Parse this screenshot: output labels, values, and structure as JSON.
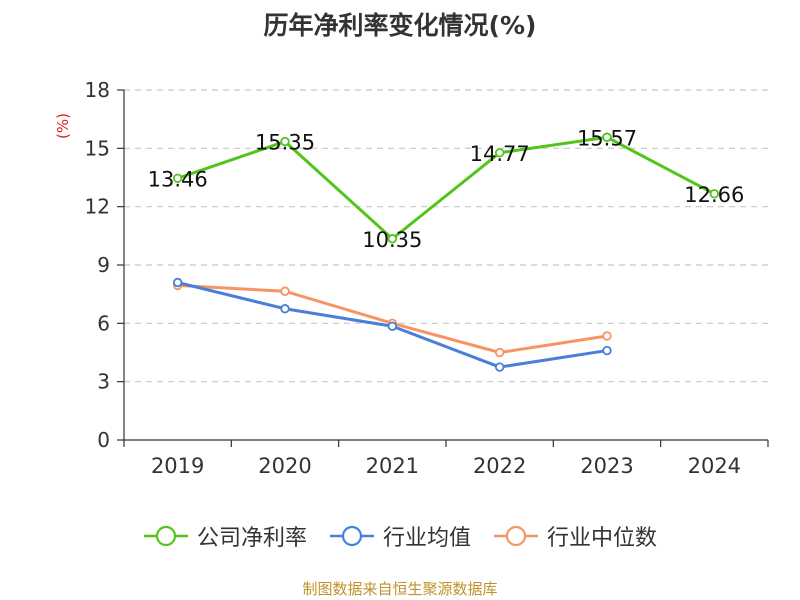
{
  "source": "制图数据来自恒生聚源数据库",
  "chart_data": {
    "type": "line",
    "title": "历年净利率变化情况(%)",
    "ylabel": "(%)",
    "categories": [
      "2019",
      "2020",
      "2021",
      "2022",
      "2023",
      "2024"
    ],
    "ylim": [
      0,
      18
    ],
    "yticks": [
      0,
      3,
      6,
      9,
      12,
      15,
      18
    ],
    "grid": true,
    "legend_position": "bottom",
    "series": [
      {
        "name": "公司净利率",
        "color": "#52c41a",
        "labels": true,
        "values": [
          13.46,
          15.35,
          10.35,
          14.77,
          15.57,
          12.66
        ]
      },
      {
        "name": "行业均值",
        "color": "#4a7fd9",
        "labels": false,
        "values": [
          8.1,
          6.75,
          5.85,
          3.75,
          4.6,
          null
        ]
      },
      {
        "name": "行业中位数",
        "color": "#f79464",
        "labels": false,
        "values": [
          7.95,
          7.65,
          6.0,
          4.5,
          5.35,
          null
        ]
      }
    ]
  }
}
